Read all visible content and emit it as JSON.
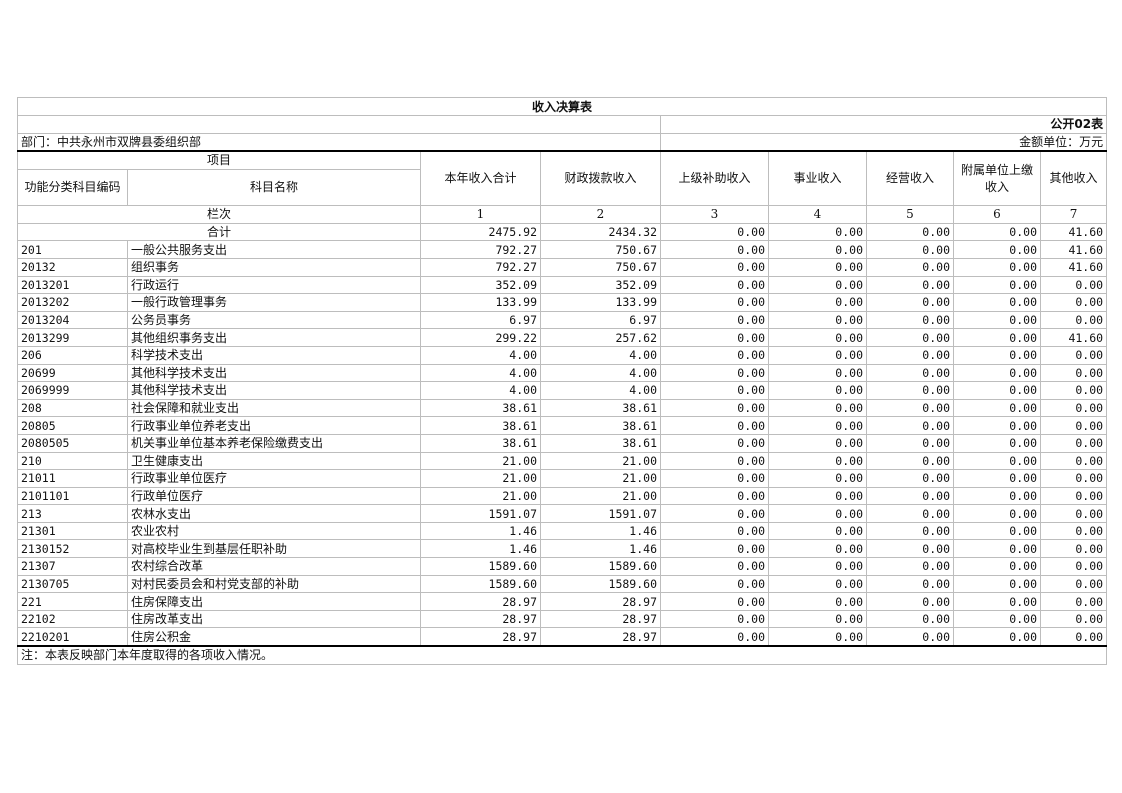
{
  "title": "收入决算表",
  "form_no": "公开02表",
  "department": "部门：中共永州市双牌县委组织部",
  "unit": "金额单位：万元",
  "headers": {
    "item": "项目",
    "code": "功能分类科目编码",
    "name": "科目名称",
    "cols": [
      "本年收入合计",
      "财政拨款收入",
      "上级补助收入",
      "事业收入",
      "经营收入",
      "附属单位上缴收入",
      "其他收入"
    ]
  },
  "col_index_label": "栏次",
  "col_numbers": [
    "1",
    "2",
    "3",
    "4",
    "5",
    "6",
    "7"
  ],
  "total": {
    "label": "合计",
    "values": [
      "2475.92",
      "2434.32",
      "0.00",
      "0.00",
      "0.00",
      "0.00",
      "41.60"
    ]
  },
  "rows": [
    {
      "code": "201",
      "name": "一般公共服务支出",
      "values": [
        "792.27",
        "750.67",
        "0.00",
        "0.00",
        "0.00",
        "0.00",
        "41.60"
      ]
    },
    {
      "code": "20132",
      "name": "组织事务",
      "values": [
        "792.27",
        "750.67",
        "0.00",
        "0.00",
        "0.00",
        "0.00",
        "41.60"
      ]
    },
    {
      "code": "2013201",
      "name": "行政运行",
      "values": [
        "352.09",
        "352.09",
        "0.00",
        "0.00",
        "0.00",
        "0.00",
        "0.00"
      ]
    },
    {
      "code": "2013202",
      "name": "一般行政管理事务",
      "values": [
        "133.99",
        "133.99",
        "0.00",
        "0.00",
        "0.00",
        "0.00",
        "0.00"
      ]
    },
    {
      "code": "2013204",
      "name": "公务员事务",
      "values": [
        "6.97",
        "6.97",
        "0.00",
        "0.00",
        "0.00",
        "0.00",
        "0.00"
      ]
    },
    {
      "code": "2013299",
      "name": "其他组织事务支出",
      "values": [
        "299.22",
        "257.62",
        "0.00",
        "0.00",
        "0.00",
        "0.00",
        "41.60"
      ]
    },
    {
      "code": "206",
      "name": "科学技术支出",
      "values": [
        "4.00",
        "4.00",
        "0.00",
        "0.00",
        "0.00",
        "0.00",
        "0.00"
      ]
    },
    {
      "code": "20699",
      "name": "其他科学技术支出",
      "values": [
        "4.00",
        "4.00",
        "0.00",
        "0.00",
        "0.00",
        "0.00",
        "0.00"
      ]
    },
    {
      "code": "2069999",
      "name": "其他科学技术支出",
      "values": [
        "4.00",
        "4.00",
        "0.00",
        "0.00",
        "0.00",
        "0.00",
        "0.00"
      ]
    },
    {
      "code": "208",
      "name": "社会保障和就业支出",
      "values": [
        "38.61",
        "38.61",
        "0.00",
        "0.00",
        "0.00",
        "0.00",
        "0.00"
      ]
    },
    {
      "code": "20805",
      "name": "行政事业单位养老支出",
      "values": [
        "38.61",
        "38.61",
        "0.00",
        "0.00",
        "0.00",
        "0.00",
        "0.00"
      ]
    },
    {
      "code": "2080505",
      "name": "机关事业单位基本养老保险缴费支出",
      "values": [
        "38.61",
        "38.61",
        "0.00",
        "0.00",
        "0.00",
        "0.00",
        "0.00"
      ]
    },
    {
      "code": "210",
      "name": "卫生健康支出",
      "values": [
        "21.00",
        "21.00",
        "0.00",
        "0.00",
        "0.00",
        "0.00",
        "0.00"
      ]
    },
    {
      "code": "21011",
      "name": "行政事业单位医疗",
      "values": [
        "21.00",
        "21.00",
        "0.00",
        "0.00",
        "0.00",
        "0.00",
        "0.00"
      ]
    },
    {
      "code": "2101101",
      "name": "行政单位医疗",
      "values": [
        "21.00",
        "21.00",
        "0.00",
        "0.00",
        "0.00",
        "0.00",
        "0.00"
      ]
    },
    {
      "code": "213",
      "name": "农林水支出",
      "values": [
        "1591.07",
        "1591.07",
        "0.00",
        "0.00",
        "0.00",
        "0.00",
        "0.00"
      ]
    },
    {
      "code": "21301",
      "name": "农业农村",
      "values": [
        "1.46",
        "1.46",
        "0.00",
        "0.00",
        "0.00",
        "0.00",
        "0.00"
      ]
    },
    {
      "code": "2130152",
      "name": "对高校毕业生到基层任职补助",
      "values": [
        "1.46",
        "1.46",
        "0.00",
        "0.00",
        "0.00",
        "0.00",
        "0.00"
      ]
    },
    {
      "code": "21307",
      "name": "农村综合改革",
      "values": [
        "1589.60",
        "1589.60",
        "0.00",
        "0.00",
        "0.00",
        "0.00",
        "0.00"
      ]
    },
    {
      "code": "2130705",
      "name": "对村民委员会和村党支部的补助",
      "values": [
        "1589.60",
        "1589.60",
        "0.00",
        "0.00",
        "0.00",
        "0.00",
        "0.00"
      ]
    },
    {
      "code": "221",
      "name": "住房保障支出",
      "values": [
        "28.97",
        "28.97",
        "0.00",
        "0.00",
        "0.00",
        "0.00",
        "0.00"
      ]
    },
    {
      "code": "22102",
      "name": "住房改革支出",
      "values": [
        "28.97",
        "28.97",
        "0.00",
        "0.00",
        "0.00",
        "0.00",
        "0.00"
      ]
    },
    {
      "code": "2210201",
      "name": "住房公积金",
      "values": [
        "28.97",
        "28.97",
        "0.00",
        "0.00",
        "0.00",
        "0.00",
        "0.00"
      ]
    }
  ],
  "note": "注：本表反映部门本年度取得的各项收入情况。"
}
